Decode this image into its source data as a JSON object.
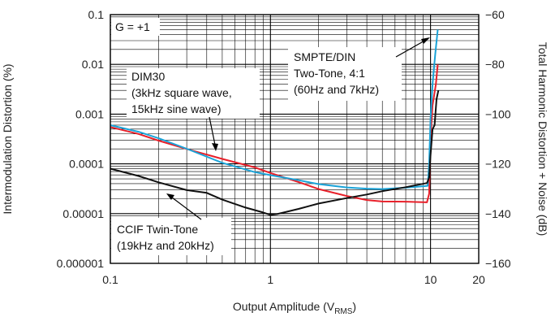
{
  "chart_data": {
    "type": "line",
    "xlabel": "Output Amplitude (V",
    "xlabel_sub": "RMS",
    "xlabel_tail": ")",
    "ylabel": "Intermodulation Distortion (%)",
    "ylabel_right": "Total Harmonic Distortion + Noise (dB)",
    "x_scale": "log",
    "y_scale": "log",
    "xlim": [
      0.1,
      20
    ],
    "ylim": [
      1e-06,
      0.1
    ],
    "ylim_right": [
      -160,
      -60
    ],
    "x_ticks": [
      "0.1",
      "1",
      "10",
      "20"
    ],
    "y_ticks": [
      "0.1",
      "0.01",
      "0.001",
      "0.0001",
      "0.00001",
      "0.000001"
    ],
    "y_ticks_right": [
      "−60",
      "−80",
      "−100",
      "−120",
      "−140",
      "−160"
    ],
    "grid": true,
    "annotations": {
      "gain": "G = +1",
      "dim30": [
        "DIM30",
        "(3kHz square wave,",
        "15kHz sine wave)"
      ],
      "smpte": [
        "SMPTE/DIN",
        "Two-Tone, 4:1",
        "(60Hz and 7kHz)"
      ],
      "ccif": [
        "CCIF Twin-Tone",
        "(19kHz and 20kHz)"
      ]
    },
    "series": [
      {
        "color": "#e8202a",
        "x": [
          0.1,
          0.15,
          0.2,
          0.3,
          0.5,
          0.8,
          1.0,
          1.5,
          2,
          3,
          4,
          5,
          7,
          9.5,
          9.8,
          10.0,
          10.3,
          10.8,
          11.1
        ],
        "y": [
          0.00055,
          0.00042,
          0.00031,
          0.0002,
          0.00012,
          8e-05,
          6.5e-05,
          4.5e-05,
          3.3e-05,
          2.3e-05,
          1.8e-05,
          1.65e-05,
          1.7e-05,
          1.75e-05,
          2.5e-05,
          0.00035,
          0.0015,
          0.004,
          0.01
        ]
      },
      {
        "color": "#1aa3d8",
        "x": [
          0.1,
          0.15,
          0.2,
          0.3,
          0.5,
          0.8,
          1.0,
          1.5,
          2,
          3,
          4,
          5,
          7,
          9.6,
          9.8,
          10.0,
          10.3,
          10.7,
          11.1
        ],
        "y": [
          0.0006,
          0.00042,
          0.00031,
          0.0002,
          0.00011,
          7.2e-05,
          6e-05,
          4.5e-05,
          3.7e-05,
          3.3e-05,
          3.3e-05,
          3.3e-05,
          3.4e-05,
          3.5e-05,
          0.0001,
          0.0008,
          0.004,
          0.016,
          0.05
        ]
      },
      {
        "color": "#111111",
        "x": [
          0.1,
          0.15,
          0.2,
          0.3,
          0.4,
          0.5,
          0.7,
          0.9,
          1.0,
          1.1,
          1.5,
          2,
          3,
          4,
          5,
          7,
          9.5,
          9.8,
          10.0,
          10.3,
          10.6,
          10.9,
          11.2
        ],
        "y": [
          8e-05,
          6e-05,
          4.5e-05,
          3e-05,
          2.5e-05,
          1.8e-05,
          1.3e-05,
          1.1e-05,
          1e-05,
          1e-05,
          1.2e-05,
          1.5e-05,
          2e-05,
          2.5e-05,
          3e-05,
          3.5e-05,
          4e-05,
          5e-05,
          0.00015,
          0.0005,
          0.0006,
          0.002,
          0.003
        ]
      }
    ]
  }
}
